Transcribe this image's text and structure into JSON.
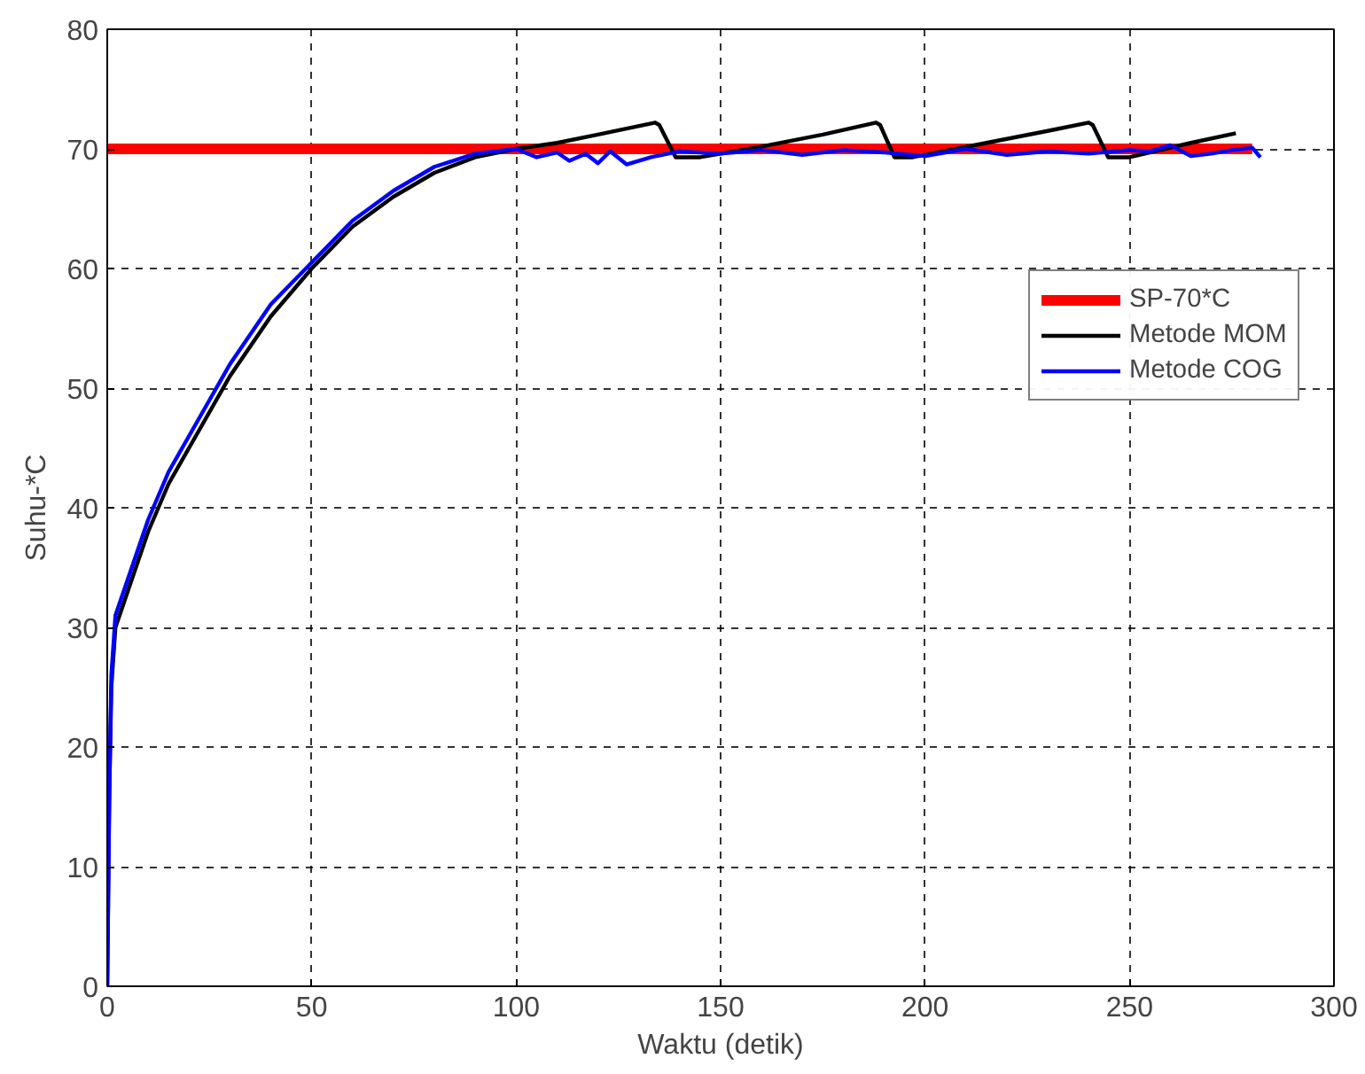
{
  "chart_data": {
    "type": "line",
    "xlabel": "Waktu (detik)",
    "ylabel": "Suhu-*C",
    "xlim": [
      0,
      300
    ],
    "ylim": [
      0,
      80
    ],
    "xticks": [
      0,
      50,
      100,
      150,
      200,
      250,
      300
    ],
    "yticks": [
      0,
      10,
      20,
      30,
      40,
      50,
      60,
      70,
      80
    ],
    "grid": true,
    "legend": "top right",
    "line_style": "solid",
    "series": [
      {
        "name": "SP-70*C",
        "color": "#ff0000",
        "x": [
          0,
          280
        ],
        "values": [
          70,
          70
        ]
      },
      {
        "name": "Metode MOM",
        "color": "#000000",
        "x": [
          0,
          0.5,
          1,
          2,
          5,
          10,
          15,
          20,
          25,
          30,
          40,
          50,
          60,
          70,
          80,
          90,
          100,
          110,
          120,
          134,
          135,
          139,
          145,
          160,
          175,
          188,
          189,
          192.5,
          197,
          215,
          230,
          240,
          241,
          244.8,
          250,
          265,
          276
        ],
        "values": [
          0,
          16,
          25,
          30,
          33,
          38,
          42,
          45,
          48,
          51,
          56,
          60,
          63.5,
          66,
          68,
          69.3,
          70,
          70.5,
          71.2,
          72.2,
          72,
          69.3,
          69.3,
          70.2,
          71.2,
          72.2,
          72,
          69.3,
          69.3,
          70.5,
          71.5,
          72.2,
          72,
          69.3,
          69.3,
          70.5,
          71.3
        ]
      },
      {
        "name": "Metode COG",
        "color": "#0000ff",
        "x": [
          0,
          0.5,
          1,
          2,
          5,
          10,
          15,
          20,
          25,
          30,
          40,
          50,
          60,
          70,
          80,
          90,
          100,
          105,
          110,
          113,
          117,
          120,
          123,
          127,
          133,
          140,
          150,
          160,
          170,
          180,
          190,
          200,
          210,
          220,
          230,
          240,
          250,
          255,
          260,
          265,
          270,
          275,
          280,
          282
        ],
        "values": [
          0,
          16,
          26,
          31,
          34,
          39,
          43,
          46,
          49,
          52,
          57,
          60.5,
          64,
          66.5,
          68.5,
          69.6,
          70,
          69.3,
          69.7,
          69,
          69.6,
          68.8,
          69.8,
          68.7,
          69.3,
          69.8,
          69.6,
          69.9,
          69.5,
          69.9,
          69.7,
          69.4,
          70,
          69.5,
          69.8,
          69.6,
          69.9,
          69.8,
          70.3,
          69.4,
          69.6,
          69.9,
          70.1,
          69.3
        ]
      }
    ]
  }
}
